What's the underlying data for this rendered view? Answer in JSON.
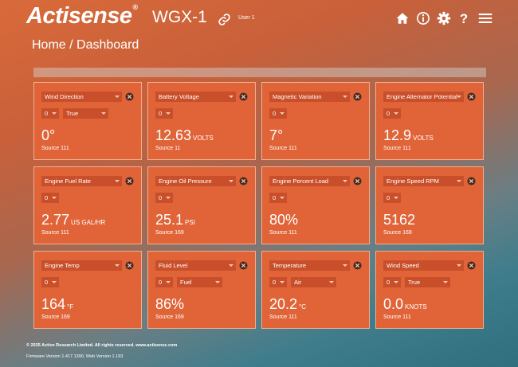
{
  "header": {
    "brand": "Actisense",
    "brand_mark": "®",
    "device": "WGX-1",
    "user": "User 1",
    "icons": [
      "home-icon",
      "info-icon",
      "gear-icon",
      "help-icon",
      "menu-icon"
    ]
  },
  "breadcrumb": "Home / Dashboard",
  "cards": [
    {
      "title": "Wind Direction",
      "instance": "0",
      "extra": "True",
      "value": "0°",
      "unit": "",
      "source": "Source 111"
    },
    {
      "title": "Battery Voltage",
      "instance": "0",
      "extra": null,
      "value": "12.63",
      "unit": "VOLTS",
      "source": "Source 11"
    },
    {
      "title": "Magnetic Variation",
      "instance": "0",
      "extra": null,
      "value": "7°",
      "unit": "",
      "source": "Source 111"
    },
    {
      "title": "Engine Alternator Potential",
      "instance": "0",
      "extra": null,
      "value": "12.9",
      "unit": "VOLTS",
      "source": "Source 111"
    },
    {
      "title": "Engine Fuel Rate",
      "instance": "0",
      "extra": null,
      "value": "2.77",
      "unit": "US GAL/HR",
      "source": "Source 111"
    },
    {
      "title": "Engine Oil Pressure",
      "instance": "0",
      "extra": null,
      "value": "25.1",
      "unit": "PSI",
      "source": "Source 169"
    },
    {
      "title": "Engine Percent Load",
      "instance": "0",
      "extra": null,
      "value": "80%",
      "unit": "",
      "source": "Source 111"
    },
    {
      "title": "Engine Speed RPM",
      "instance": "0",
      "extra": null,
      "value": "5162",
      "unit": "",
      "source": "Source 169"
    },
    {
      "title": "Engine Temp",
      "instance": "0",
      "extra": null,
      "value": "164",
      "unit": "°F",
      "source": "Source 169"
    },
    {
      "title": "Fluid Level",
      "instance": "0",
      "extra": "Fuel",
      "value": "86%",
      "unit": "",
      "source": "Source 169"
    },
    {
      "title": "Temperature",
      "instance": "0",
      "extra": "Air",
      "value": "20.2",
      "unit": "°C",
      "source": "Source 111"
    },
    {
      "title": "Wind Speed",
      "instance": "0",
      "extra": "True",
      "value": "0.0",
      "unit": "KNOTS",
      "source": "Source 111"
    }
  ],
  "footer": {
    "copyright": "© 2025 Active Research Limited. All rights reserved.  www.actisense.com",
    "version": "Firmware Version 1.417.1390, Web Version 1.193"
  },
  "colors": {
    "card": "#e06438",
    "select": "#c84f2a",
    "text": "#ffffff"
  }
}
